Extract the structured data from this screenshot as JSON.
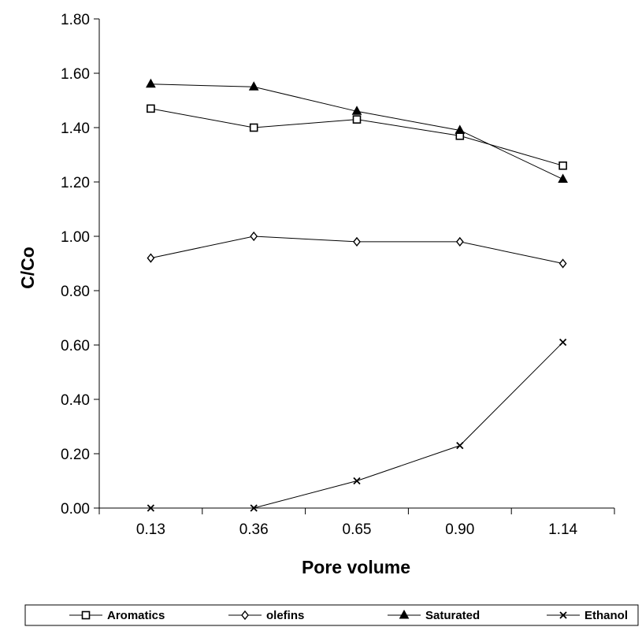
{
  "chart_data": {
    "type": "line",
    "title": "",
    "xlabel": "Pore volume",
    "ylabel": "C/Co",
    "categories": [
      "0.13",
      "0.36",
      "0.65",
      "0.90",
      "1.14"
    ],
    "ylim": [
      0,
      1.8
    ],
    "yticks": [
      "0.00",
      "0.20",
      "0.40",
      "0.60",
      "0.80",
      "1.00",
      "1.20",
      "1.40",
      "1.60",
      "1.80"
    ],
    "grid": false,
    "legend_position": "bottom",
    "series": [
      {
        "name": "Aromatics",
        "marker": "open-square",
        "values": [
          1.47,
          1.4,
          1.43,
          1.37,
          1.26
        ]
      },
      {
        "name": "olefins",
        "marker": "open-diamond",
        "values": [
          0.92,
          1.0,
          0.98,
          0.98,
          0.9
        ]
      },
      {
        "name": "Saturated",
        "marker": "filled-triangle",
        "values": [
          1.56,
          1.55,
          1.46,
          1.39,
          1.21
        ]
      },
      {
        "name": "Ethanol",
        "marker": "x",
        "values": [
          0.0,
          0.0,
          0.1,
          0.23,
          0.61
        ]
      }
    ],
    "colors": {
      "line": "#000000",
      "background": "#ffffff"
    }
  }
}
